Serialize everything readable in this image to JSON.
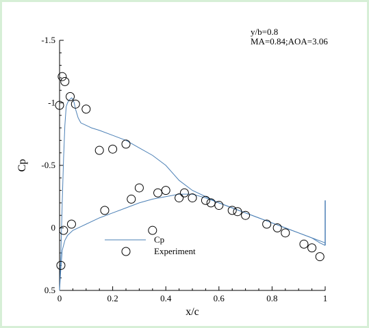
{
  "chart_data": {
    "type": "scatter",
    "xlabel": "x/c",
    "ylabel": "Cp",
    "xlim": [
      0,
      1
    ],
    "ylim": [
      0.5,
      -1.5
    ],
    "y_axis_inverted": true,
    "grid": false,
    "legend_position": "lower-left",
    "x_ticks": [
      "0",
      "0.2",
      "0.4",
      "0.6",
      "0.8",
      "1"
    ],
    "x_tick_values": [
      0,
      0.2,
      0.4,
      0.6,
      0.8,
      1
    ],
    "y_ticks": [
      "-1.5",
      "-1",
      "-0.5",
      "0",
      "0.5"
    ],
    "y_tick_values": [
      -1.5,
      -1,
      -0.5,
      0,
      0.5
    ],
    "annotations": [
      "y/b=0.8",
      "MA=0.84;AOA=3.06"
    ],
    "colors": {
      "cp_line": "#4a7fb5",
      "markers": "#000000",
      "frame_border": "#d6efd6"
    },
    "series": [
      {
        "name": "Cp",
        "type": "line",
        "upper": {
          "x": [
            0.0,
            0.005,
            0.01,
            0.015,
            0.02,
            0.025,
            0.03,
            0.035,
            0.04,
            0.045,
            0.05,
            0.055,
            0.06,
            0.07,
            0.08,
            0.1,
            0.12,
            0.15,
            0.2,
            0.25,
            0.3,
            0.35,
            0.4,
            0.45,
            0.5,
            0.55,
            0.6,
            0.65,
            0.7,
            0.75,
            0.8,
            0.85,
            0.9,
            0.95,
            0.98,
            1.0
          ],
          "y": [
            0.5,
            0.2,
            -0.2,
            -0.55,
            -0.82,
            -0.97,
            -1.0,
            -1.02,
            -1.03,
            -1.04,
            -1.03,
            -1.0,
            -0.95,
            -0.88,
            -0.84,
            -0.82,
            -0.8,
            -0.78,
            -0.74,
            -0.7,
            -0.64,
            -0.58,
            -0.5,
            -0.38,
            -0.3,
            -0.25,
            -0.2,
            -0.16,
            -0.12,
            -0.08,
            -0.04,
            0.0,
            0.04,
            0.08,
            0.12,
            0.14
          ]
        },
        "lower": {
          "x": [
            0.0,
            0.005,
            0.01,
            0.02,
            0.03,
            0.05,
            0.08,
            0.1,
            0.15,
            0.2,
            0.25,
            0.3,
            0.35,
            0.4,
            0.45,
            0.5,
            0.55,
            0.6,
            0.65,
            0.7,
            0.75,
            0.8,
            0.85,
            0.9,
            0.95,
            1.0
          ],
          "y": [
            0.5,
            0.32,
            0.18,
            0.1,
            0.06,
            0.02,
            -0.01,
            -0.03,
            -0.08,
            -0.12,
            -0.16,
            -0.2,
            -0.23,
            -0.25,
            -0.27,
            -0.27,
            -0.24,
            -0.2,
            -0.16,
            -0.12,
            -0.08,
            -0.04,
            0.0,
            0.04,
            0.08,
            0.12
          ]
        },
        "trailing_edge": {
          "x": [
            1.0,
            1.0
          ],
          "y": [
            0.14,
            -0.22
          ]
        }
      },
      {
        "name": "Experiment",
        "type": "scatter",
        "x": [
          0.0,
          0.01,
          0.02,
          0.04,
          0.06,
          0.1,
          0.15,
          0.2,
          0.25,
          0.3,
          0.35,
          0.005,
          0.015,
          0.045,
          0.17,
          0.27,
          0.37,
          0.4,
          0.45,
          0.47,
          0.5,
          0.55,
          0.57,
          0.6,
          0.65,
          0.67,
          0.7,
          0.78,
          0.82,
          0.85,
          0.92,
          0.95,
          0.98
        ],
        "y": [
          -0.98,
          -1.21,
          -1.17,
          -1.05,
          -0.99,
          -0.95,
          -0.62,
          -0.63,
          -0.67,
          -0.32,
          0.02,
          0.3,
          0.02,
          -0.03,
          -0.14,
          -0.23,
          -0.28,
          -0.3,
          -0.24,
          -0.28,
          -0.24,
          -0.22,
          -0.2,
          -0.18,
          -0.14,
          -0.13,
          -0.1,
          -0.03,
          0.0,
          0.04,
          0.13,
          0.16,
          0.23
        ]
      }
    ]
  }
}
